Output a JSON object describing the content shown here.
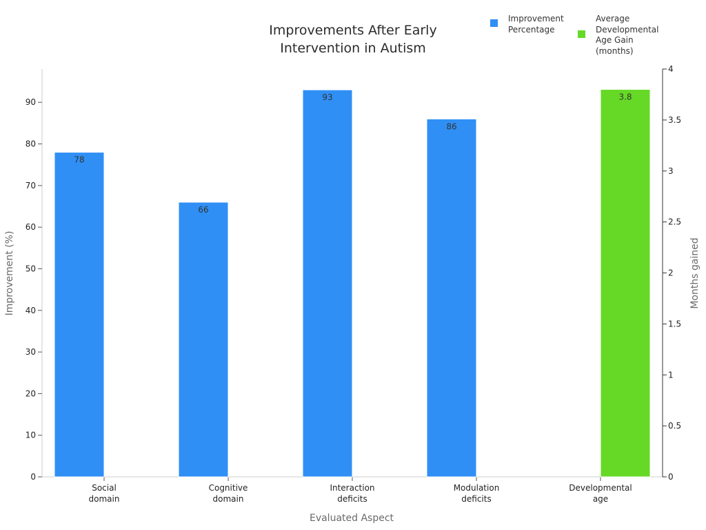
{
  "chart_data": {
    "type": "bar",
    "title": "Improvements After Early Intervention in Autism",
    "title_lines": [
      "Improvements After Early",
      "Intervention in Autism"
    ],
    "xlabel": "Evaluated Aspect",
    "ylabel": "Improvement (%)",
    "y2label": "Months gained",
    "categories": [
      [
        "Social",
        "domain"
      ],
      [
        "Cognitive",
        "domain"
      ],
      [
        "Interaction",
        "deficits"
      ],
      [
        "Modulation",
        "deficits"
      ],
      [
        "Developmental",
        "age"
      ]
    ],
    "ylim": [
      0,
      98
    ],
    "y2lim": [
      0,
      4
    ],
    "yticks": [
      0,
      10,
      20,
      30,
      40,
      50,
      60,
      70,
      80,
      90
    ],
    "y2ticks": [
      "0",
      "0.5",
      "1",
      "1.5",
      "2",
      "2.5",
      "3",
      "3.5",
      "4"
    ],
    "y2tick_values": [
      0,
      0.5,
      1,
      1.5,
      2,
      2.5,
      3,
      3.5,
      4
    ],
    "grid": false,
    "legend_position": "top-right",
    "series": [
      {
        "name": "Improvement Percentage",
        "legend_lines": [
          "Improvement",
          "Percentage"
        ],
        "axis": "left",
        "color": "#2f8ff5",
        "values": [
          78,
          66,
          93,
          86,
          null
        ],
        "labels": [
          "78",
          "66",
          "93",
          "86",
          ""
        ]
      },
      {
        "name": "Average Developmental Age Gain (months)",
        "legend_lines": [
          "Average",
          "Developmental",
          "Age Gain",
          "(months)"
        ],
        "axis": "right",
        "color": "#66d926",
        "values": [
          null,
          null,
          null,
          null,
          3.8
        ],
        "labels": [
          "",
          "",
          "",
          "",
          "3.8"
        ]
      }
    ]
  }
}
